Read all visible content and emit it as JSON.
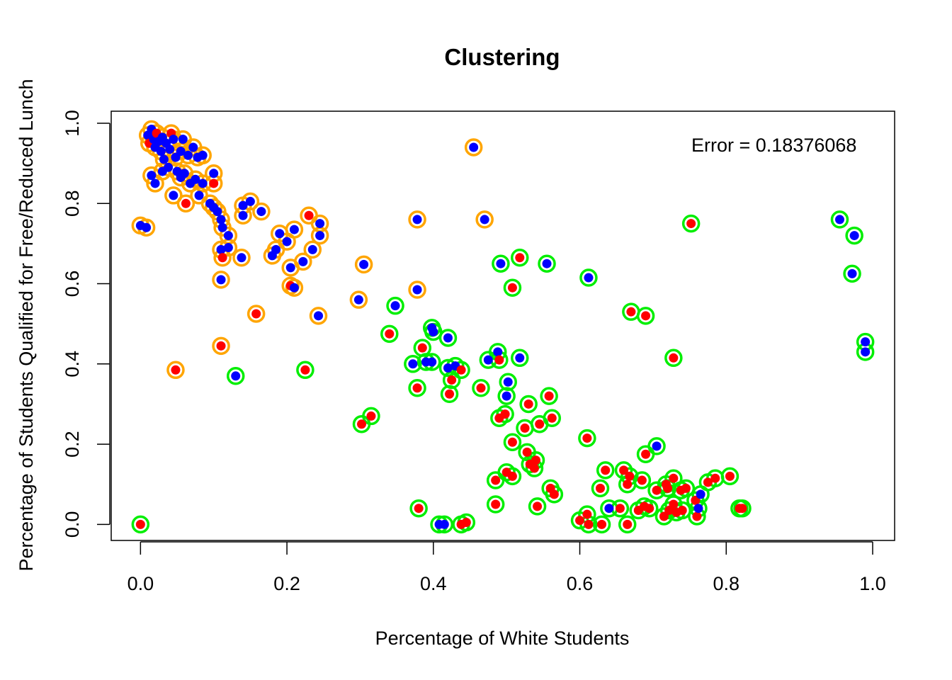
{
  "chart_data": {
    "type": "scatter",
    "title": "Clustering",
    "xlabel": "Percentage of White Students",
    "ylabel": "Percentage of Students Qualified for Free/Reduced Lunch",
    "annotation": "Error = 0.18376068",
    "xlim": [
      -0.04,
      1.03
    ],
    "ylim": [
      -0.04,
      1.03
    ],
    "x_ticks": [
      {
        "value": 0.0,
        "label": "0.0"
      },
      {
        "value": 0.2,
        "label": "0.2"
      },
      {
        "value": 0.4,
        "label": "0.4"
      },
      {
        "value": 0.6,
        "label": "0.6"
      },
      {
        "value": 0.8,
        "label": "0.8"
      },
      {
        "value": 1.0,
        "label": "1.0"
      }
    ],
    "y_ticks": [
      {
        "value": 0.0,
        "label": "0.0"
      },
      {
        "value": 0.2,
        "label": "0.2"
      },
      {
        "value": 0.4,
        "label": "0.4"
      },
      {
        "value": 0.6,
        "label": "0.6"
      },
      {
        "value": 0.8,
        "label": "0.8"
      },
      {
        "value": 1.0,
        "label": "1.0"
      }
    ],
    "grid": false,
    "colors": {
      "cluster_a_ring": "#FFA500",
      "cluster_b_ring": "#00EE00",
      "class_blue": "#0000FF",
      "class_red": "#FF0000"
    },
    "points": [
      {
        "x": 0.0,
        "y": 0.745,
        "c": "b",
        "r": "o"
      },
      {
        "x": 0.008,
        "y": 0.74,
        "c": "b",
        "r": "o"
      },
      {
        "x": 0.0,
        "y": 0.0,
        "c": "r",
        "r": "g"
      },
      {
        "x": 0.01,
        "y": 0.97,
        "c": "b",
        "r": "o"
      },
      {
        "x": 0.012,
        "y": 0.95,
        "c": "r",
        "r": "o"
      },
      {
        "x": 0.015,
        "y": 0.985,
        "c": "b",
        "r": "o"
      },
      {
        "x": 0.018,
        "y": 0.96,
        "c": "b",
        "r": "o"
      },
      {
        "x": 0.02,
        "y": 0.94,
        "c": "b",
        "r": "o"
      },
      {
        "x": 0.022,
        "y": 0.975,
        "c": "r",
        "r": "o"
      },
      {
        "x": 0.025,
        "y": 0.955,
        "c": "b",
        "r": "o"
      },
      {
        "x": 0.028,
        "y": 0.93,
        "c": "b",
        "r": "o"
      },
      {
        "x": 0.03,
        "y": 0.965,
        "c": "b",
        "r": "o"
      },
      {
        "x": 0.032,
        "y": 0.91,
        "c": "b",
        "r": "o"
      },
      {
        "x": 0.035,
        "y": 0.95,
        "c": "b",
        "r": "o"
      },
      {
        "x": 0.038,
        "y": 0.89,
        "c": "b",
        "r": "o"
      },
      {
        "x": 0.04,
        "y": 0.935,
        "c": "b",
        "r": "o"
      },
      {
        "x": 0.042,
        "y": 0.975,
        "c": "r",
        "r": "o"
      },
      {
        "x": 0.045,
        "y": 0.96,
        "c": "b",
        "r": "o"
      },
      {
        "x": 0.048,
        "y": 0.915,
        "c": "b",
        "r": "o"
      },
      {
        "x": 0.05,
        "y": 0.88,
        "c": "b",
        "r": "o"
      },
      {
        "x": 0.055,
        "y": 0.93,
        "c": "b",
        "r": "o"
      },
      {
        "x": 0.058,
        "y": 0.96,
        "c": "b",
        "r": "o"
      },
      {
        "x": 0.06,
        "y": 0.875,
        "c": "b",
        "r": "o"
      },
      {
        "x": 0.065,
        "y": 0.92,
        "c": "b",
        "r": "o"
      },
      {
        "x": 0.068,
        "y": 0.85,
        "c": "b",
        "r": "o"
      },
      {
        "x": 0.072,
        "y": 0.94,
        "c": "b",
        "r": "o"
      },
      {
        "x": 0.078,
        "y": 0.915,
        "c": "b",
        "r": "o"
      },
      {
        "x": 0.085,
        "y": 0.92,
        "c": "b",
        "r": "o"
      },
      {
        "x": 0.015,
        "y": 0.87,
        "c": "b",
        "r": "o"
      },
      {
        "x": 0.02,
        "y": 0.85,
        "c": "b",
        "r": "o"
      },
      {
        "x": 0.03,
        "y": 0.88,
        "c": "b",
        "r": "o"
      },
      {
        "x": 0.045,
        "y": 0.82,
        "c": "b",
        "r": "o"
      },
      {
        "x": 0.055,
        "y": 0.865,
        "c": "b",
        "r": "o"
      },
      {
        "x": 0.062,
        "y": 0.8,
        "c": "r",
        "r": "o"
      },
      {
        "x": 0.075,
        "y": 0.86,
        "c": "b",
        "r": "o"
      },
      {
        "x": 0.08,
        "y": 0.82,
        "c": "b",
        "r": "o"
      },
      {
        "x": 0.085,
        "y": 0.85,
        "c": "b",
        "r": "o"
      },
      {
        "x": 0.1,
        "y": 0.875,
        "c": "b",
        "r": "o"
      },
      {
        "x": 0.1,
        "y": 0.85,
        "c": "r",
        "r": "o"
      },
      {
        "x": 0.095,
        "y": 0.8,
        "c": "b",
        "r": "o"
      },
      {
        "x": 0.1,
        "y": 0.79,
        "c": "b",
        "r": "o"
      },
      {
        "x": 0.105,
        "y": 0.78,
        "c": "b",
        "r": "o"
      },
      {
        "x": 0.11,
        "y": 0.76,
        "c": "b",
        "r": "o"
      },
      {
        "x": 0.112,
        "y": 0.74,
        "c": "b",
        "r": "o"
      },
      {
        "x": 0.12,
        "y": 0.72,
        "c": "b",
        "r": "o"
      },
      {
        "x": 0.12,
        "y": 0.69,
        "c": "b",
        "r": "o"
      },
      {
        "x": 0.11,
        "y": 0.685,
        "c": "b",
        "r": "o"
      },
      {
        "x": 0.112,
        "y": 0.665,
        "c": "r",
        "r": "o"
      },
      {
        "x": 0.11,
        "y": 0.61,
        "c": "b",
        "r": "o"
      },
      {
        "x": 0.14,
        "y": 0.795,
        "c": "b",
        "r": "o"
      },
      {
        "x": 0.14,
        "y": 0.77,
        "c": "b",
        "r": "o"
      },
      {
        "x": 0.15,
        "y": 0.805,
        "c": "b",
        "r": "o"
      },
      {
        "x": 0.165,
        "y": 0.78,
        "c": "b",
        "r": "o"
      },
      {
        "x": 0.138,
        "y": 0.665,
        "c": "b",
        "r": "o"
      },
      {
        "x": 0.158,
        "y": 0.525,
        "c": "r",
        "r": "o"
      },
      {
        "x": 0.11,
        "y": 0.445,
        "c": "r",
        "r": "o"
      },
      {
        "x": 0.048,
        "y": 0.385,
        "c": "r",
        "r": "o"
      },
      {
        "x": 0.18,
        "y": 0.67,
        "c": "b",
        "r": "o"
      },
      {
        "x": 0.185,
        "y": 0.685,
        "c": "b",
        "r": "o"
      },
      {
        "x": 0.19,
        "y": 0.725,
        "c": "b",
        "r": "o"
      },
      {
        "x": 0.2,
        "y": 0.705,
        "c": "b",
        "r": "o"
      },
      {
        "x": 0.205,
        "y": 0.64,
        "c": "b",
        "r": "o"
      },
      {
        "x": 0.21,
        "y": 0.735,
        "c": "b",
        "r": "o"
      },
      {
        "x": 0.205,
        "y": 0.595,
        "c": "r",
        "r": "o"
      },
      {
        "x": 0.21,
        "y": 0.59,
        "c": "b",
        "r": "o"
      },
      {
        "x": 0.222,
        "y": 0.655,
        "c": "b",
        "r": "o"
      },
      {
        "x": 0.23,
        "y": 0.77,
        "c": "r",
        "r": "o"
      },
      {
        "x": 0.235,
        "y": 0.685,
        "c": "b",
        "r": "o"
      },
      {
        "x": 0.245,
        "y": 0.75,
        "c": "b",
        "r": "o"
      },
      {
        "x": 0.245,
        "y": 0.72,
        "c": "b",
        "r": "o"
      },
      {
        "x": 0.243,
        "y": 0.52,
        "c": "b",
        "r": "o"
      },
      {
        "x": 0.225,
        "y": 0.385,
        "c": "r",
        "r": "g"
      },
      {
        "x": 0.13,
        "y": 0.37,
        "c": "b",
        "r": "g"
      },
      {
        "x": 0.298,
        "y": 0.56,
        "c": "b",
        "r": "o"
      },
      {
        "x": 0.305,
        "y": 0.648,
        "c": "b",
        "r": "o"
      },
      {
        "x": 0.302,
        "y": 0.25,
        "c": "r",
        "r": "g"
      },
      {
        "x": 0.315,
        "y": 0.27,
        "c": "r",
        "r": "g"
      },
      {
        "x": 0.34,
        "y": 0.475,
        "c": "r",
        "r": "g"
      },
      {
        "x": 0.348,
        "y": 0.545,
        "c": "b",
        "r": "g"
      },
      {
        "x": 0.378,
        "y": 0.76,
        "c": "b",
        "r": "o"
      },
      {
        "x": 0.378,
        "y": 0.585,
        "c": "b",
        "r": "o"
      },
      {
        "x": 0.455,
        "y": 0.94,
        "c": "b",
        "r": "o"
      },
      {
        "x": 0.47,
        "y": 0.76,
        "c": "b",
        "r": "o"
      },
      {
        "x": 0.372,
        "y": 0.4,
        "c": "b",
        "r": "g"
      },
      {
        "x": 0.378,
        "y": 0.34,
        "c": "r",
        "r": "g"
      },
      {
        "x": 0.385,
        "y": 0.44,
        "c": "r",
        "r": "g"
      },
      {
        "x": 0.39,
        "y": 0.405,
        "c": "b",
        "r": "g"
      },
      {
        "x": 0.398,
        "y": 0.405,
        "c": "b",
        "r": "g"
      },
      {
        "x": 0.398,
        "y": 0.49,
        "c": "b",
        "r": "g"
      },
      {
        "x": 0.4,
        "y": 0.48,
        "c": "b",
        "r": "g"
      },
      {
        "x": 0.42,
        "y": 0.465,
        "c": "b",
        "r": "g"
      },
      {
        "x": 0.42,
        "y": 0.39,
        "c": "b",
        "r": "g"
      },
      {
        "x": 0.425,
        "y": 0.36,
        "c": "r",
        "r": "g"
      },
      {
        "x": 0.43,
        "y": 0.395,
        "c": "b",
        "r": "g"
      },
      {
        "x": 0.438,
        "y": 0.385,
        "c": "r",
        "r": "g"
      },
      {
        "x": 0.422,
        "y": 0.325,
        "c": "r",
        "r": "g"
      },
      {
        "x": 0.38,
        "y": 0.04,
        "c": "r",
        "r": "g"
      },
      {
        "x": 0.408,
        "y": 0.0,
        "c": "b",
        "r": "g"
      },
      {
        "x": 0.415,
        "y": 0.0,
        "c": "b",
        "r": "g"
      },
      {
        "x": 0.438,
        "y": 0.0,
        "c": "r",
        "r": "g"
      },
      {
        "x": 0.445,
        "y": 0.005,
        "c": "r",
        "r": "g"
      },
      {
        "x": 0.465,
        "y": 0.34,
        "c": "r",
        "r": "g"
      },
      {
        "x": 0.475,
        "y": 0.41,
        "c": "b",
        "r": "g"
      },
      {
        "x": 0.488,
        "y": 0.43,
        "c": "b",
        "r": "g"
      },
      {
        "x": 0.49,
        "y": 0.41,
        "c": "r",
        "r": "g"
      },
      {
        "x": 0.492,
        "y": 0.65,
        "c": "b",
        "r": "g"
      },
      {
        "x": 0.5,
        "y": 0.32,
        "c": "b",
        "r": "g"
      },
      {
        "x": 0.502,
        "y": 0.355,
        "c": "b",
        "r": "g"
      },
      {
        "x": 0.49,
        "y": 0.265,
        "c": "r",
        "r": "g"
      },
      {
        "x": 0.498,
        "y": 0.275,
        "c": "r",
        "r": "g"
      },
      {
        "x": 0.508,
        "y": 0.205,
        "c": "r",
        "r": "g"
      },
      {
        "x": 0.508,
        "y": 0.59,
        "c": "r",
        "r": "g"
      },
      {
        "x": 0.518,
        "y": 0.665,
        "c": "r",
        "r": "g"
      },
      {
        "x": 0.518,
        "y": 0.415,
        "c": "b",
        "r": "g"
      },
      {
        "x": 0.485,
        "y": 0.11,
        "c": "r",
        "r": "g"
      },
      {
        "x": 0.485,
        "y": 0.05,
        "c": "r",
        "r": "g"
      },
      {
        "x": 0.5,
        "y": 0.13,
        "c": "r",
        "r": "g"
      },
      {
        "x": 0.508,
        "y": 0.12,
        "c": "r",
        "r": "g"
      },
      {
        "x": 0.525,
        "y": 0.24,
        "c": "r",
        "r": "g"
      },
      {
        "x": 0.53,
        "y": 0.3,
        "c": "r",
        "r": "g"
      },
      {
        "x": 0.528,
        "y": 0.18,
        "c": "r",
        "r": "g"
      },
      {
        "x": 0.532,
        "y": 0.15,
        "c": "r",
        "r": "g"
      },
      {
        "x": 0.538,
        "y": 0.14,
        "c": "r",
        "r": "g"
      },
      {
        "x": 0.54,
        "y": 0.16,
        "c": "r",
        "r": "g"
      },
      {
        "x": 0.545,
        "y": 0.25,
        "c": "r",
        "r": "g"
      },
      {
        "x": 0.542,
        "y": 0.045,
        "c": "r",
        "r": "g"
      },
      {
        "x": 0.555,
        "y": 0.65,
        "c": "b",
        "r": "g"
      },
      {
        "x": 0.558,
        "y": 0.32,
        "c": "r",
        "r": "g"
      },
      {
        "x": 0.562,
        "y": 0.265,
        "c": "r",
        "r": "g"
      },
      {
        "x": 0.56,
        "y": 0.09,
        "c": "r",
        "r": "g"
      },
      {
        "x": 0.565,
        "y": 0.075,
        "c": "r",
        "r": "g"
      },
      {
        "x": 0.61,
        "y": 0.215,
        "c": "r",
        "r": "g"
      },
      {
        "x": 0.612,
        "y": 0.615,
        "c": "b",
        "r": "g"
      },
      {
        "x": 0.6,
        "y": 0.01,
        "c": "r",
        "r": "g"
      },
      {
        "x": 0.61,
        "y": 0.025,
        "c": "r",
        "r": "g"
      },
      {
        "x": 0.612,
        "y": 0.0,
        "c": "r",
        "r": "g"
      },
      {
        "x": 0.63,
        "y": 0.0,
        "c": "r",
        "r": "g"
      },
      {
        "x": 0.628,
        "y": 0.09,
        "c": "r",
        "r": "g"
      },
      {
        "x": 0.635,
        "y": 0.135,
        "c": "r",
        "r": "g"
      },
      {
        "x": 0.64,
        "y": 0.04,
        "c": "b",
        "r": "g"
      },
      {
        "x": 0.655,
        "y": 0.04,
        "c": "r",
        "r": "g"
      },
      {
        "x": 0.66,
        "y": 0.135,
        "c": "r",
        "r": "g"
      },
      {
        "x": 0.665,
        "y": 0.1,
        "c": "r",
        "r": "g"
      },
      {
        "x": 0.668,
        "y": 0.12,
        "c": "r",
        "r": "g"
      },
      {
        "x": 0.665,
        "y": 0.0,
        "c": "r",
        "r": "g"
      },
      {
        "x": 0.67,
        "y": 0.53,
        "c": "r",
        "r": "g"
      },
      {
        "x": 0.68,
        "y": 0.035,
        "c": "r",
        "r": "g"
      },
      {
        "x": 0.685,
        "y": 0.11,
        "c": "r",
        "r": "g"
      },
      {
        "x": 0.688,
        "y": 0.045,
        "c": "r",
        "r": "g"
      },
      {
        "x": 0.69,
        "y": 0.175,
        "c": "r",
        "r": "g"
      },
      {
        "x": 0.69,
        "y": 0.52,
        "c": "r",
        "r": "g"
      },
      {
        "x": 0.695,
        "y": 0.04,
        "c": "r",
        "r": "g"
      },
      {
        "x": 0.705,
        "y": 0.195,
        "c": "b",
        "r": "g"
      },
      {
        "x": 0.705,
        "y": 0.085,
        "c": "r",
        "r": "g"
      },
      {
        "x": 0.715,
        "y": 0.02,
        "c": "r",
        "r": "g"
      },
      {
        "x": 0.718,
        "y": 0.1,
        "c": "r",
        "r": "g"
      },
      {
        "x": 0.72,
        "y": 0.09,
        "c": "r",
        "r": "g"
      },
      {
        "x": 0.722,
        "y": 0.035,
        "c": "r",
        "r": "g"
      },
      {
        "x": 0.728,
        "y": 0.115,
        "c": "r",
        "r": "g"
      },
      {
        "x": 0.728,
        "y": 0.415,
        "c": "r",
        "r": "g"
      },
      {
        "x": 0.728,
        "y": 0.05,
        "c": "r",
        "r": "g"
      },
      {
        "x": 0.732,
        "y": 0.03,
        "c": "r",
        "r": "g"
      },
      {
        "x": 0.738,
        "y": 0.085,
        "c": "r",
        "r": "g"
      },
      {
        "x": 0.74,
        "y": 0.035,
        "c": "r",
        "r": "g"
      },
      {
        "x": 0.745,
        "y": 0.09,
        "c": "r",
        "r": "g"
      },
      {
        "x": 0.752,
        "y": 0.75,
        "c": "r",
        "r": "g"
      },
      {
        "x": 0.758,
        "y": 0.06,
        "c": "r",
        "r": "g"
      },
      {
        "x": 0.76,
        "y": 0.02,
        "c": "r",
        "r": "g"
      },
      {
        "x": 0.762,
        "y": 0.04,
        "c": "b",
        "r": "g"
      },
      {
        "x": 0.765,
        "y": 0.075,
        "c": "b",
        "r": "g"
      },
      {
        "x": 0.775,
        "y": 0.105,
        "c": "r",
        "r": "g"
      },
      {
        "x": 0.785,
        "y": 0.115,
        "c": "r",
        "r": "g"
      },
      {
        "x": 0.805,
        "y": 0.12,
        "c": "r",
        "r": "g"
      },
      {
        "x": 0.818,
        "y": 0.04,
        "c": "r",
        "r": "g"
      },
      {
        "x": 0.822,
        "y": 0.04,
        "c": "r",
        "r": "g"
      },
      {
        "x": 0.955,
        "y": 0.76,
        "c": "b",
        "r": "g"
      },
      {
        "x": 0.975,
        "y": 0.72,
        "c": "b",
        "r": "g"
      },
      {
        "x": 0.972,
        "y": 0.625,
        "c": "b",
        "r": "g"
      },
      {
        "x": 0.99,
        "y": 0.455,
        "c": "b",
        "r": "g"
      },
      {
        "x": 0.99,
        "y": 0.43,
        "c": "b",
        "r": "g"
      }
    ]
  }
}
